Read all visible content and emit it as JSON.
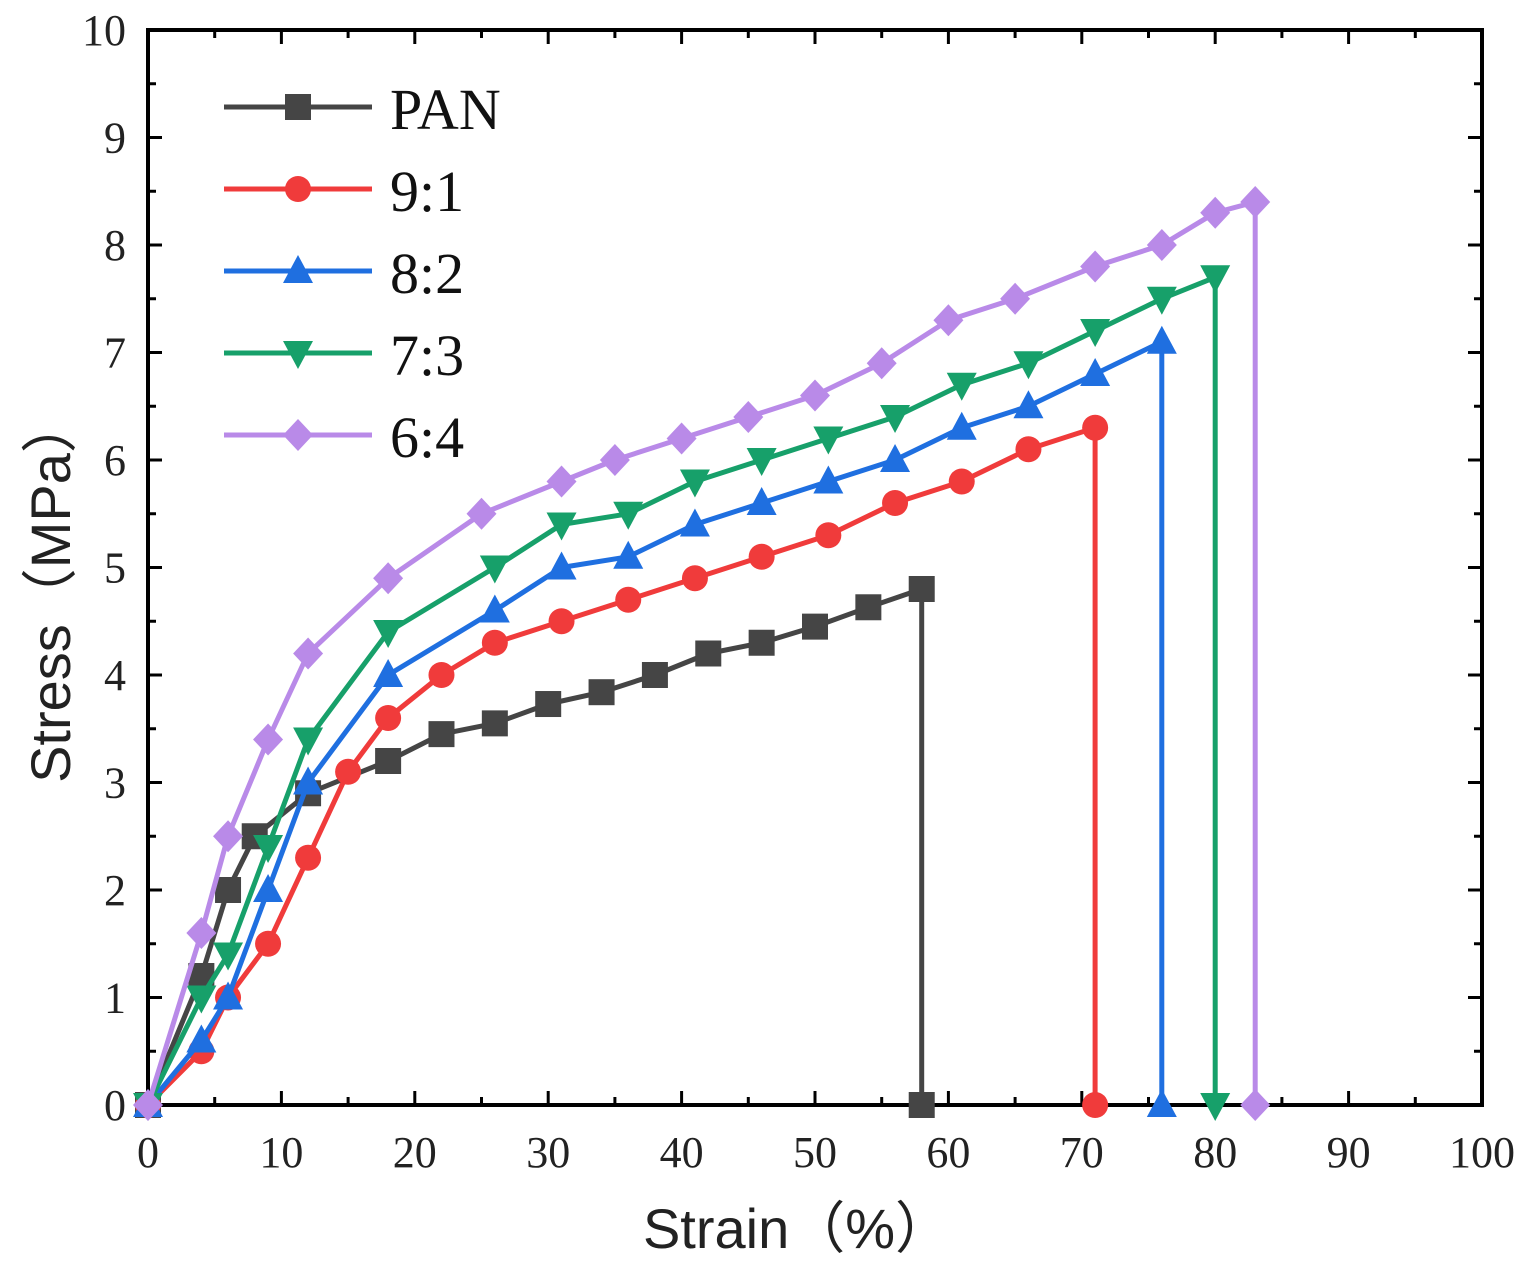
{
  "chart_data": {
    "type": "line",
    "title": "",
    "xlabel": "Strain（%）",
    "ylabel": "Stress（MPa）",
    "xlim": [
      0,
      100
    ],
    "ylim": [
      0,
      10
    ],
    "xticks": [
      0,
      10,
      20,
      30,
      40,
      50,
      60,
      70,
      80,
      90,
      100
    ],
    "yticks": [
      0,
      1,
      2,
      3,
      4,
      5,
      6,
      7,
      8,
      9,
      10
    ],
    "grid": false,
    "legend_position": "top-left",
    "series": [
      {
        "name": "PAN",
        "color": "#454545",
        "marker": "square",
        "points": [
          [
            0,
            0
          ],
          [
            4,
            1.2
          ],
          [
            6,
            2.0
          ],
          [
            8,
            2.5
          ],
          [
            12,
            2.9
          ],
          [
            18,
            3.2
          ],
          [
            22,
            3.45
          ],
          [
            26,
            3.55
          ],
          [
            30,
            3.73
          ],
          [
            34,
            3.84
          ],
          [
            38,
            4.0
          ],
          [
            42,
            4.2
          ],
          [
            46,
            4.3
          ],
          [
            50,
            4.45
          ],
          [
            54,
            4.63
          ],
          [
            58,
            4.8
          ],
          [
            58,
            0
          ]
        ]
      },
      {
        "name": "9:1",
        "color": "#f03b3b",
        "marker": "circle",
        "points": [
          [
            0,
            0
          ],
          [
            4,
            0.5
          ],
          [
            6,
            1.0
          ],
          [
            9,
            1.5
          ],
          [
            12,
            2.3
          ],
          [
            15,
            3.1
          ],
          [
            18,
            3.6
          ],
          [
            22,
            4.0
          ],
          [
            26,
            4.3
          ],
          [
            31,
            4.5
          ],
          [
            36,
            4.7
          ],
          [
            41,
            4.9
          ],
          [
            46,
            5.1
          ],
          [
            51,
            5.3
          ],
          [
            56,
            5.6
          ],
          [
            61,
            5.8
          ],
          [
            66,
            6.1
          ],
          [
            71,
            6.3
          ],
          [
            71,
            0
          ]
        ]
      },
      {
        "name": "8:2",
        "color": "#1f6fe0",
        "marker": "triangle-up",
        "points": [
          [
            0,
            0
          ],
          [
            4,
            0.6
          ],
          [
            6,
            1.0
          ],
          [
            9,
            2.0
          ],
          [
            12,
            3.0
          ],
          [
            18,
            4.0
          ],
          [
            26,
            4.6
          ],
          [
            31,
            5.0
          ],
          [
            36,
            5.1
          ],
          [
            41,
            5.4
          ],
          [
            46,
            5.6
          ],
          [
            51,
            5.8
          ],
          [
            56,
            6.0
          ],
          [
            61,
            6.3
          ],
          [
            66,
            6.5
          ],
          [
            71,
            6.8
          ],
          [
            76,
            7.1
          ],
          [
            76,
            0
          ]
        ]
      },
      {
        "name": "7:3",
        "color": "#17a06a",
        "marker": "triangle-down",
        "points": [
          [
            0,
            0
          ],
          [
            4,
            1.0
          ],
          [
            6,
            1.4
          ],
          [
            9,
            2.4
          ],
          [
            12,
            3.4
          ],
          [
            18,
            4.4
          ],
          [
            26,
            5.0
          ],
          [
            31,
            5.4
          ],
          [
            36,
            5.5
          ],
          [
            41,
            5.8
          ],
          [
            46,
            6.0
          ],
          [
            51,
            6.2
          ],
          [
            56,
            6.4
          ],
          [
            61,
            6.7
          ],
          [
            66,
            6.9
          ],
          [
            71,
            7.2
          ],
          [
            76,
            7.5
          ],
          [
            80,
            7.7
          ],
          [
            80,
            0
          ]
        ]
      },
      {
        "name": "6:4",
        "color": "#b98ae8",
        "marker": "diamond",
        "points": [
          [
            0,
            0
          ],
          [
            4,
            1.6
          ],
          [
            6,
            2.5
          ],
          [
            9,
            3.4
          ],
          [
            12,
            4.2
          ],
          [
            18,
            4.9
          ],
          [
            25,
            5.5
          ],
          [
            31,
            5.8
          ],
          [
            35,
            6.0
          ],
          [
            40,
            6.2
          ],
          [
            45,
            6.4
          ],
          [
            50,
            6.6
          ],
          [
            55,
            6.9
          ],
          [
            60,
            7.3
          ],
          [
            65,
            7.5
          ],
          [
            71,
            7.8
          ],
          [
            76,
            8.0
          ],
          [
            80,
            8.3
          ],
          [
            83,
            8.4
          ],
          [
            83,
            0
          ]
        ]
      }
    ]
  }
}
